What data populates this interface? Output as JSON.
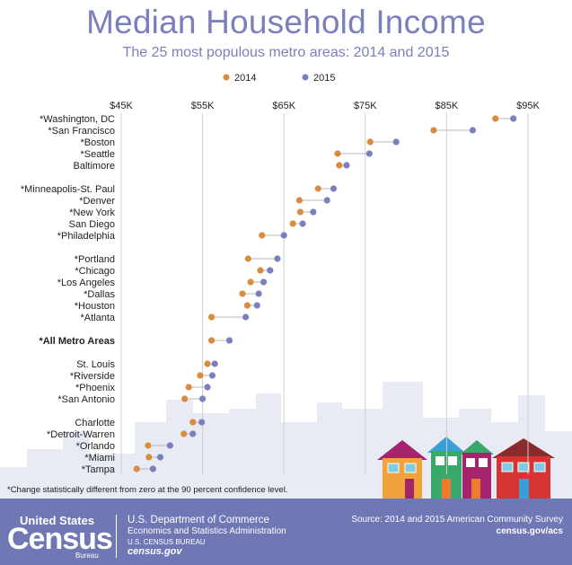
{
  "chart_data": {
    "type": "dot",
    "title": "Median Household Income",
    "subtitle": "The 25 most populous metro areas: 2014 and 2015",
    "legend": [
      {
        "name": "2014",
        "color": "#d98b3e"
      },
      {
        "name": "2015",
        "color": "#7a80bd"
      }
    ],
    "x_ticks": [
      "$45K",
      "$55K",
      "$65K",
      "$75K",
      "$85K",
      "$95K"
    ],
    "x_tick_values": [
      45000,
      55000,
      65000,
      75000,
      85000,
      95000
    ],
    "xlim": [
      45000,
      95000
    ],
    "rows": [
      {
        "label": "*Washington, DC",
        "v2014": 91000,
        "v2015": 93200,
        "bold": false,
        "group": 0
      },
      {
        "label": "*San Francisco",
        "v2014": 83400,
        "v2015": 88200,
        "bold": false,
        "group": 0
      },
      {
        "label": "*Boston",
        "v2014": 75600,
        "v2015": 78800,
        "bold": false,
        "group": 0
      },
      {
        "label": "*Seattle",
        "v2014": 71600,
        "v2015": 75500,
        "bold": false,
        "group": 0
      },
      {
        "label": "Baltimore",
        "v2014": 71800,
        "v2015": 72700,
        "bold": false,
        "group": 0
      },
      {
        "label": "*Minneapolis-St. Paul",
        "v2014": 69200,
        "v2015": 71100,
        "bold": false,
        "group": 1
      },
      {
        "label": "*Denver",
        "v2014": 66900,
        "v2015": 70300,
        "bold": false,
        "group": 1
      },
      {
        "label": "*New York",
        "v2014": 67000,
        "v2015": 68600,
        "bold": false,
        "group": 1
      },
      {
        "label": "San Diego",
        "v2014": 66100,
        "v2015": 67300,
        "bold": false,
        "group": 1
      },
      {
        "label": "*Philadelphia",
        "v2014": 62300,
        "v2015": 65000,
        "bold": false,
        "group": 1
      },
      {
        "label": "*Portland",
        "v2014": 60600,
        "v2015": 64200,
        "bold": false,
        "group": 2
      },
      {
        "label": "*Chicago",
        "v2014": 62100,
        "v2015": 63300,
        "bold": false,
        "group": 2
      },
      {
        "label": "*Los Angeles",
        "v2014": 60900,
        "v2015": 62500,
        "bold": false,
        "group": 2
      },
      {
        "label": "*Dallas",
        "v2014": 59900,
        "v2015": 61900,
        "bold": false,
        "group": 2
      },
      {
        "label": "*Houston",
        "v2014": 60500,
        "v2015": 61700,
        "bold": false,
        "group": 2
      },
      {
        "label": "*Atlanta",
        "v2014": 56100,
        "v2015": 60300,
        "bold": false,
        "group": 2
      },
      {
        "label": "*All Metro Areas",
        "v2014": 56100,
        "v2015": 58300,
        "bold": true,
        "group": 3
      },
      {
        "label": "St. Louis",
        "v2014": 55600,
        "v2015": 56500,
        "bold": false,
        "group": 4
      },
      {
        "label": "*Riverside",
        "v2014": 54700,
        "v2015": 56200,
        "bold": false,
        "group": 4
      },
      {
        "label": "*Phoenix",
        "v2014": 53300,
        "v2015": 55600,
        "bold": false,
        "group": 4
      },
      {
        "label": "*San Antonio",
        "v2014": 52800,
        "v2015": 55000,
        "bold": false,
        "group": 4
      },
      {
        "label": "Charlotte",
        "v2014": 53800,
        "v2015": 54900,
        "bold": false,
        "group": 5
      },
      {
        "label": "*Detroit-Warren",
        "v2014": 52700,
        "v2015": 53800,
        "bold": false,
        "group": 5
      },
      {
        "label": "*Orlando",
        "v2014": 48300,
        "v2015": 51000,
        "bold": false,
        "group": 5
      },
      {
        "label": "*Miami",
        "v2014": 48400,
        "v2015": 49800,
        "bold": false,
        "group": 5
      },
      {
        "label": "*Tampa",
        "v2014": 46900,
        "v2015": 48900,
        "bold": false,
        "group": 5
      }
    ]
  },
  "footnote": "*Change statistically different from zero at the 90 percent confidence level.",
  "footer": {
    "logo_top": "United States",
    "logo_word": "Census",
    "logo_bureau": "Bureau",
    "dept_line1": "U.S. Department of Commerce",
    "dept_line2": "Economics and Statistics Administration",
    "dept_line3": "U.S. CENSUS BUREAU",
    "dept_line4": "census.gov",
    "source": "Source: 2014 and 2015 American Community Survey",
    "source_url": "census.gov/acs"
  },
  "colors": {
    "accent": "#7a80bd",
    "dot_2014": "#d98b3e",
    "dot_2015": "#7a80bd",
    "footer_bg": "#6f77b5",
    "skyline": "#e8eaf4"
  }
}
